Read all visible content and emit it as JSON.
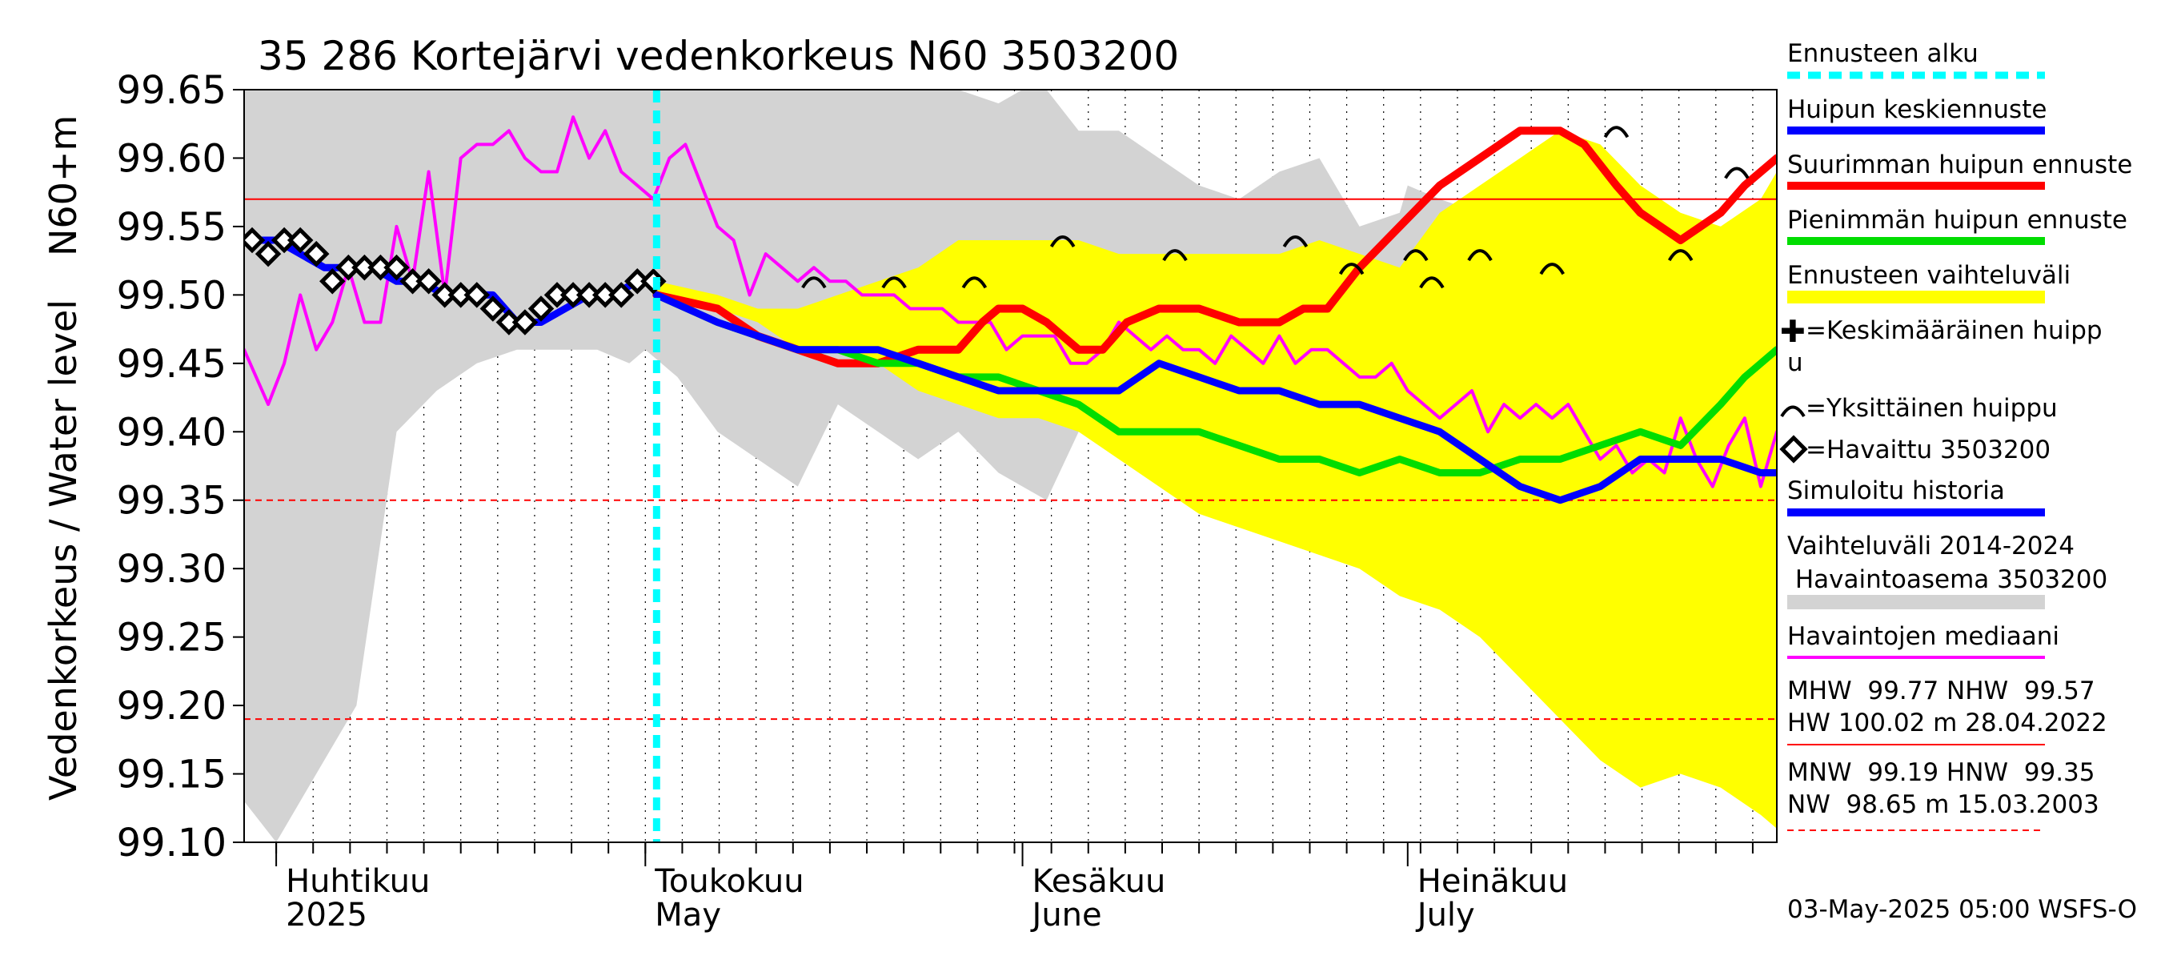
{
  "chart_data": {
    "type": "line",
    "title": "35 286 Kortejärvi vedenkorkeus N60 3503200",
    "ylabel_left": "Vedenkorkeus / Water level",
    "ylabel_right": "N60+m",
    "ylim": [
      99.1,
      99.65
    ],
    "yticks": [
      "99.65",
      "99.60",
      "99.55",
      "99.50",
      "99.45",
      "99.40",
      "99.35",
      "99.30",
      "99.25",
      "99.20",
      "99.15",
      "99.10"
    ],
    "x_range_days": [
      -4,
      187
    ],
    "month_labels": [
      {
        "fi": "Huhtikuu",
        "en": "2025",
        "day": 0
      },
      {
        "fi": "Toukokuu",
        "en": "May",
        "day": 46
      },
      {
        "fi": "Kesäkuu",
        "en": "June",
        "day": 93
      },
      {
        "fi": "Heinäkuu",
        "en": "July",
        "day": 141
      }
    ],
    "forecast_start_day": 47.4,
    "reference_lines": [
      {
        "name": "NHW",
        "value": 99.57,
        "style": "solid",
        "color": "#ff0000"
      },
      {
        "name": "HNW",
        "value": 99.35,
        "style": "dashed",
        "color": "#ff0000"
      },
      {
        "name": "MNW",
        "value": 99.19,
        "style": "dashed",
        "color": "#ff0000"
      }
    ],
    "series": [
      {
        "name": "Vaihteluväli 2014-2024 Havaintoasema 3503200",
        "kind": "band",
        "color": "#d3d3d3",
        "x": [
          -4,
          0,
          5,
          10,
          15,
          20,
          25,
          30,
          35,
          40,
          44,
          46,
          50,
          55,
          60,
          65,
          70,
          75,
          80,
          85,
          90,
          93,
          96,
          100,
          105,
          110,
          115,
          120,
          125,
          130,
          135,
          140,
          141,
          145,
          150,
          155,
          160,
          165,
          170,
          175,
          180,
          185,
          187
        ],
        "upper": [
          99.65,
          99.65,
          99.65,
          99.65,
          99.65,
          99.65,
          99.65,
          99.65,
          99.65,
          99.65,
          99.65,
          99.65,
          99.65,
          99.65,
          99.65,
          99.65,
          99.65,
          99.65,
          99.65,
          99.65,
          99.64,
          99.65,
          99.65,
          99.62,
          99.62,
          99.6,
          99.58,
          99.57,
          99.59,
          99.6,
          99.55,
          99.56,
          99.58,
          99.57,
          99.56,
          99.55,
          99.56,
          99.57,
          99.56,
          99.55,
          99.55,
          99.54,
          99.54
        ],
        "lower": [
          99.13,
          99.1,
          99.15,
          99.2,
          99.4,
          99.43,
          99.45,
          99.46,
          99.46,
          99.46,
          99.45,
          99.46,
          99.44,
          99.4,
          99.38,
          99.36,
          99.42,
          99.4,
          99.38,
          99.4,
          99.37,
          99.36,
          99.35,
          99.4,
          99.41,
          99.39,
          99.4,
          99.41,
          99.38,
          99.38,
          99.47,
          99.48,
          99.5,
          99.48,
          99.47,
          99.45,
          99.48,
          99.47,
          99.46,
          99.48,
          99.46,
          99.45,
          99.5
        ]
      },
      {
        "name": "Ennusteen vaihteluväli",
        "kind": "band",
        "color": "#ffff00",
        "x": [
          47.4,
          55,
          60,
          65,
          70,
          75,
          80,
          85,
          90,
          95,
          100,
          105,
          110,
          115,
          120,
          125,
          130,
          135,
          140,
          145,
          150,
          155,
          160,
          165,
          170,
          175,
          180,
          185,
          187
        ],
        "upper": [
          99.51,
          99.5,
          99.49,
          99.49,
          99.5,
          99.51,
          99.52,
          99.54,
          99.54,
          99.54,
          99.54,
          99.53,
          99.53,
          99.53,
          99.53,
          99.53,
          99.54,
          99.53,
          99.52,
          99.56,
          99.58,
          99.6,
          99.62,
          99.61,
          99.58,
          99.56,
          99.55,
          99.57,
          99.59
        ],
        "lower": [
          99.5,
          99.49,
          99.48,
          99.46,
          99.46,
          99.45,
          99.43,
          99.42,
          99.41,
          99.41,
          99.4,
          99.38,
          99.36,
          99.34,
          99.33,
          99.32,
          99.31,
          99.3,
          99.28,
          99.27,
          99.25,
          99.22,
          99.19,
          99.16,
          99.14,
          99.15,
          99.14,
          99.12,
          99.11
        ]
      },
      {
        "name": "Havaintojen mediaani",
        "kind": "line",
        "color": "#ff00ff",
        "x": [
          -4,
          -1,
          1,
          3,
          5,
          7,
          9,
          11,
          13,
          15,
          17,
          19,
          21,
          23,
          25,
          27,
          29,
          31,
          33,
          35,
          37,
          39,
          41,
          43,
          45,
          47,
          49,
          51,
          53,
          55,
          57,
          59,
          61,
          63,
          65,
          67,
          69,
          71,
          73,
          75,
          77,
          79,
          81,
          83,
          85,
          87,
          89,
          91,
          93,
          95,
          97,
          99,
          101,
          103,
          105,
          107,
          109,
          111,
          113,
          115,
          117,
          119,
          121,
          123,
          125,
          127,
          129,
          131,
          133,
          135,
          137,
          139,
          141,
          143,
          145,
          147,
          149,
          151,
          153,
          155,
          157,
          159,
          161,
          163,
          165,
          167,
          169,
          171,
          173,
          175,
          177,
          179,
          181,
          183,
          185,
          187
        ],
        "y": [
          99.46,
          99.42,
          99.45,
          99.5,
          99.46,
          99.48,
          99.52,
          99.48,
          99.48,
          99.55,
          99.51,
          99.59,
          99.5,
          99.6,
          99.61,
          99.61,
          99.62,
          99.6,
          99.59,
          99.59,
          99.63,
          99.6,
          99.62,
          99.59,
          99.58,
          99.57,
          99.6,
          99.61,
          99.58,
          99.55,
          99.54,
          99.5,
          99.53,
          99.52,
          99.51,
          99.52,
          99.51,
          99.51,
          99.5,
          99.5,
          99.5,
          99.49,
          99.49,
          99.49,
          99.48,
          99.48,
          99.48,
          99.46,
          99.47,
          99.47,
          99.47,
          99.45,
          99.45,
          99.46,
          99.48,
          99.47,
          99.46,
          99.47,
          99.46,
          99.46,
          99.45,
          99.47,
          99.46,
          99.45,
          99.47,
          99.45,
          99.46,
          99.46,
          99.45,
          99.44,
          99.44,
          99.45,
          99.43,
          99.42,
          99.41,
          99.42,
          99.43,
          99.4,
          99.42,
          99.41,
          99.42,
          99.41,
          99.42,
          99.4,
          99.38,
          99.39,
          99.37,
          99.38,
          99.37,
          99.41,
          99.38,
          99.36,
          99.39,
          99.41,
          99.36,
          99.4
        ]
      },
      {
        "name": "Simuloitu historia",
        "kind": "line",
        "color": "#0000ff",
        "x": [
          -3,
          0,
          3,
          6,
          9,
          12,
          15,
          18,
          21,
          24,
          27,
          30,
          33,
          36,
          39,
          42,
          45,
          47.4
        ],
        "y": [
          99.54,
          99.54,
          99.53,
          99.52,
          99.52,
          99.52,
          99.51,
          99.51,
          99.5,
          99.5,
          99.5,
          99.48,
          99.48,
          99.49,
          99.5,
          99.5,
          99.51,
          99.51
        ]
      },
      {
        "name": "Havaittu 3503200",
        "kind": "markers",
        "color": "#000000",
        "x": [
          -3,
          -1,
          1,
          3,
          5,
          7,
          9,
          11,
          13,
          15,
          17,
          19,
          21,
          23,
          25,
          27,
          29,
          31,
          33,
          35,
          37,
          39,
          41,
          43,
          45,
          47
        ],
        "y": [
          99.54,
          99.53,
          99.54,
          99.54,
          99.53,
          99.51,
          99.52,
          99.52,
          99.52,
          99.52,
          99.51,
          99.51,
          99.5,
          99.5,
          99.5,
          99.49,
          99.48,
          99.48,
          99.49,
          99.5,
          99.5,
          99.5,
          99.5,
          99.5,
          99.51,
          99.51
        ]
      },
      {
        "name": "Suurimman huipun ennuste",
        "kind": "line",
        "color": "#ff0000",
        "x": [
          47.4,
          55,
          60,
          65,
          70,
          75,
          80,
          85,
          88,
          90,
          93,
          96,
          100,
          103,
          106,
          110,
          115,
          120,
          125,
          128,
          131,
          135,
          140,
          145,
          150,
          155,
          160,
          163,
          167,
          170,
          175,
          180,
          183,
          187
        ],
        "y": [
          99.5,
          99.49,
          99.47,
          99.46,
          99.45,
          99.45,
          99.46,
          99.46,
          99.48,
          99.49,
          99.49,
          99.48,
          99.46,
          99.46,
          99.48,
          99.49,
          99.49,
          99.48,
          99.48,
          99.49,
          99.49,
          99.52,
          99.55,
          99.58,
          99.6,
          99.62,
          99.62,
          99.61,
          99.58,
          99.56,
          99.54,
          99.56,
          99.58,
          99.6
        ]
      },
      {
        "name": "Pienimmän huipun ennuste",
        "kind": "line",
        "color": "#00dd00",
        "x": [
          47.4,
          55,
          60,
          65,
          70,
          75,
          80,
          85,
          90,
          95,
          100,
          105,
          110,
          115,
          120,
          125,
          130,
          135,
          140,
          145,
          150,
          155,
          160,
          165,
          170,
          175,
          180,
          183,
          187
        ],
        "y": [
          99.5,
          99.48,
          99.47,
          99.46,
          99.46,
          99.45,
          99.45,
          99.44,
          99.44,
          99.43,
          99.42,
          99.4,
          99.4,
          99.4,
          99.39,
          99.38,
          99.38,
          99.37,
          99.38,
          99.37,
          99.37,
          99.38,
          99.38,
          99.39,
          99.4,
          99.39,
          99.42,
          99.44,
          99.46
        ]
      },
      {
        "name": "Huipun keskiennuste",
        "kind": "line",
        "color": "#0000ff",
        "x": [
          47.4,
          55,
          60,
          65,
          70,
          75,
          80,
          85,
          90,
          95,
          100,
          105,
          110,
          115,
          120,
          125,
          130,
          135,
          140,
          145,
          150,
          155,
          160,
          165,
          170,
          175,
          180,
          185,
          187
        ],
        "y": [
          99.5,
          99.48,
          99.47,
          99.46,
          99.46,
          99.46,
          99.45,
          99.44,
          99.43,
          99.43,
          99.43,
          99.43,
          99.45,
          99.44,
          99.43,
          99.43,
          99.42,
          99.42,
          99.41,
          99.4,
          99.38,
          99.36,
          99.35,
          99.36,
          99.38,
          99.38,
          99.38,
          99.37,
          99.37
        ]
      },
      {
        "name": "Yksittäinen huippu",
        "kind": "markers",
        "color": "#000000",
        "x": [
          67,
          77,
          87,
          98,
          112,
          127,
          134,
          142,
          144,
          150,
          159,
          167,
          175,
          182
        ],
        "y": [
          99.51,
          99.51,
          99.51,
          99.54,
          99.53,
          99.54,
          99.52,
          99.53,
          99.51,
          99.53,
          99.52,
          99.62,
          99.53,
          99.59
        ]
      }
    ],
    "legend_position": "right",
    "stats": {
      "line1": "MHW  99.77 NHW  99.57",
      "line2": "HW 100.02 m 28.04.2022",
      "line3": "MNW  99.19 HNW  99.35",
      "line4": "NW  98.65 m 15.03.2003"
    },
    "footer": "03-May-2025 05:00 WSFS-O"
  },
  "legend": {
    "forecast_start": "Ennusteen alku",
    "mean_peak": "Huipun keskiennuste",
    "max_peak": "Suurimman huipun ennuste",
    "min_peak": "Pienimmän huipun ennuste",
    "forecast_range": "Ennusteen vaihteluväli",
    "avg_peak_a": "=Keskimääräinen huipp",
    "avg_peak_b": "u",
    "single_peak": "=Yksittäinen huippu",
    "observed": "=Havaittu 3503200",
    "sim_history": "Simuloitu historia",
    "hist_range_a": "Vaihteluväli 2014-2024",
    "hist_range_b": " Havaintoasema 3503200",
    "median": "Havaintojen mediaani"
  }
}
